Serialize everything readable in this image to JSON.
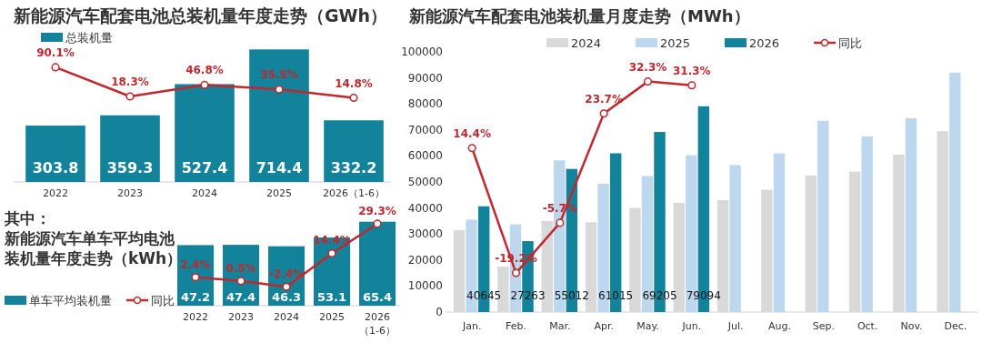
{
  "chart_data": [
    {
      "type": "bar",
      "title": "新能源汽车配套电池总装机量年度走势（GWh）",
      "categories": [
        "2022",
        "2023",
        "2024",
        "2025",
        "2026（1-6）"
      ],
      "series": [
        {
          "name": "总装机量",
          "color": "#13829b",
          "values": [
            303.8,
            359.3,
            527.4,
            714.4,
            332.2
          ],
          "value_labels": [
            "303.8",
            "359.3",
            "527.4",
            "714.4",
            "332.2"
          ]
        },
        {
          "type": "line",
          "axis": "y2",
          "color": "#c0282d",
          "values": [
            90.1,
            18.3,
            46.8,
            35.5,
            14.8
          ],
          "value_labels": [
            "90.1%",
            "18.3%",
            "46.8%",
            "35.5%",
            "14.8%"
          ]
        }
      ],
      "legend": "top left",
      "marker": "circle",
      "tick_labels": "x"
    },
    {
      "type": "bar",
      "title": "其中：新能源汽车单车平均电池装机量年度走势（kWh）",
      "categories": [
        "2022",
        "2023",
        "2024",
        "2025",
        "2026（1-6）"
      ],
      "series": [
        {
          "name": "单车平均装机量",
          "color": "#13829b",
          "values": [
            47.2,
            47.4,
            46.3,
            53.1,
            65.4
          ],
          "value_labels": [
            "47.2",
            "47.4",
            "46.3",
            "53.1",
            "65.4"
          ]
        },
        {
          "name": "同比",
          "type": "line",
          "axis": "y2",
          "color": "#c0282d",
          "values": [
            2.4,
            0.5,
            -2.4,
            14.4,
            29.3
          ],
          "value_labels": [
            "2.4%",
            "0.5%",
            "-2.4%",
            "14.4%",
            "29.3%"
          ]
        }
      ],
      "legend": "bottom left",
      "marker": "circle",
      "tick_labels": "x"
    },
    {
      "type": "bar",
      "title": "新能源汽车配套电池装机量月度走势（MWh）",
      "categories": [
        "Jan.",
        "Feb.",
        "Mar.",
        "Apr.",
        "May.",
        "Jun.",
        "Jul.",
        "Aug.",
        "Sep.",
        "Oct.",
        "Nov.",
        "Dec."
      ],
      "series": [
        {
          "name": "2024",
          "color": "#d9d9d9",
          "values": [
            31500,
            17500,
            35000,
            34500,
            40000,
            42000,
            43000,
            47000,
            52500,
            54000,
            60500,
            69500
          ]
        },
        {
          "name": "2025",
          "color": "#bdd7ee",
          "values": [
            35500,
            33700,
            58300,
            49300,
            52300,
            60300,
            56500,
            61000,
            73500,
            67500,
            74500,
            92000
          ]
        },
        {
          "name": "2026",
          "color": "#13829b",
          "values": [
            40645,
            27263,
            55012,
            61015,
            69205,
            79094,
            null,
            null,
            null,
            null,
            null,
            null
          ],
          "value_labels": [
            "40645",
            "27263",
            "55012",
            "61015",
            "69205",
            "79094",
            null,
            null,
            null,
            null,
            null,
            null
          ]
        },
        {
          "name": "同比",
          "type": "line",
          "axis": "y2",
          "color": "#c0282d",
          "values": [
            14.4,
            -19.2,
            -5.7,
            23.7,
            32.3,
            31.3,
            null,
            null,
            null,
            null,
            null,
            null
          ],
          "value_labels": [
            "14.4%",
            "-19.2%",
            "-5.7%",
            "23.7%",
            "32.3%",
            "31.3%",
            null,
            null,
            null,
            null,
            null,
            null
          ]
        }
      ],
      "ylim": [
        0,
        100000
      ],
      "yticks": [
        0,
        10000,
        20000,
        30000,
        40000,
        50000,
        60000,
        70000,
        80000,
        90000,
        100000
      ],
      "legend": "top",
      "marker": "circle"
    }
  ]
}
